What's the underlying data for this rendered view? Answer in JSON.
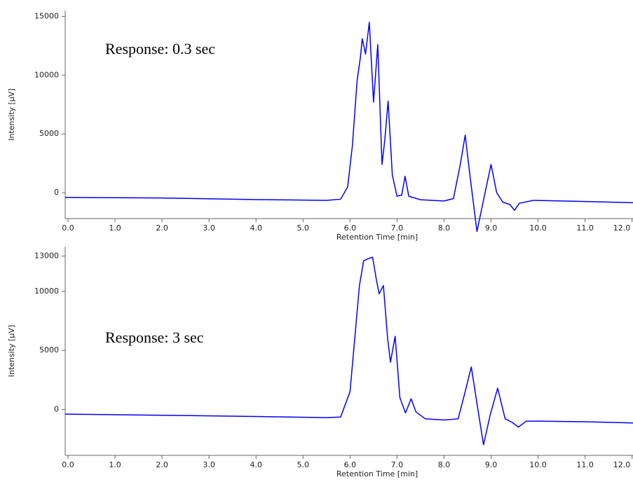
{
  "chart_data": [
    {
      "type": "line",
      "annotation": "Response: 0.3 sec",
      "x_label": "Retention Time [min]",
      "y_label": "Intensity [µV]",
      "xlim": [
        -0.06,
        12.02
      ],
      "ylim": [
        -2200,
        15500
      ],
      "xticks": [
        {
          "value": 0,
          "label": "0.0"
        },
        {
          "value": 1,
          "label": "1.0"
        },
        {
          "value": 2,
          "label": "2.0"
        },
        {
          "value": 3,
          "label": "3.0"
        },
        {
          "value": 4,
          "label": "4.0"
        },
        {
          "value": 5,
          "label": "5.0"
        },
        {
          "value": 6,
          "label": "6.0"
        },
        {
          "value": 7,
          "label": "7.0"
        },
        {
          "value": 8,
          "label": "8.0"
        },
        {
          "value": 9,
          "label": "9.0"
        },
        {
          "value": 10,
          "label": "10.0"
        },
        {
          "value": 11,
          "label": "11.0"
        },
        {
          "value": 12,
          "label": "12.0"
        }
      ],
      "yticks": [
        0,
        5000,
        10000,
        15000
      ],
      "series": [
        {
          "color": "#0000ff",
          "x": [
            -0.06,
            2,
            4,
            5.5,
            5.8,
            5.95,
            6.05,
            6.15,
            6.22,
            6.26,
            6.33,
            6.41,
            6.5,
            6.59,
            6.68,
            6.74,
            6.81,
            6.9,
            7.0,
            7.1,
            7.17,
            7.25,
            7.5,
            8.0,
            8.2,
            8.35,
            8.45,
            8.55,
            8.7,
            8.82,
            9.0,
            9.12,
            9.25,
            9.4,
            9.5,
            9.6,
            9.9,
            11,
            12.02
          ],
          "values": [
            -400,
            -450,
            -580,
            -650,
            -550,
            500,
            4000,
            9500,
            11500,
            13100,
            11800,
            14500,
            7700,
            12600,
            2400,
            4500,
            7800,
            1500,
            -300,
            -200,
            1400,
            -300,
            -600,
            -700,
            -500,
            2500,
            4900,
            1500,
            -3300,
            -1000,
            2400,
            0,
            -800,
            -1000,
            -1500,
            -900,
            -650,
            -750,
            -850
          ]
        }
      ]
    },
    {
      "type": "line",
      "annotation": "Response: 3 sec",
      "x_label": "Retention Time [min]",
      "y_label": "Intensity [µV]",
      "xlim": [
        -0.06,
        12.02
      ],
      "ylim": [
        -3900,
        13800
      ],
      "xticks": [
        {
          "value": 0,
          "label": "0.0"
        },
        {
          "value": 1,
          "label": "1.0"
        },
        {
          "value": 2,
          "label": "2.0"
        },
        {
          "value": 3,
          "label": "3.0"
        },
        {
          "value": 4,
          "label": "4.0"
        },
        {
          "value": 5,
          "label": "5.0"
        },
        {
          "value": 6,
          "label": "6.0"
        },
        {
          "value": 7,
          "label": "7.0"
        },
        {
          "value": 8,
          "label": "8.0"
        },
        {
          "value": 9,
          "label": "9.0"
        },
        {
          "value": 10,
          "label": "10.0"
        },
        {
          "value": 11,
          "label": "11.0"
        },
        {
          "value": 12,
          "label": "12.0"
        }
      ],
      "yticks": [
        0,
        5000,
        10000,
        13000
      ],
      "series": [
        {
          "color": "#0000ff",
          "x": [
            -0.06,
            2,
            4,
            5.5,
            5.8,
            6.0,
            6.1,
            6.2,
            6.29,
            6.4,
            6.48,
            6.56,
            6.62,
            6.71,
            6.8,
            6.86,
            6.96,
            7.06,
            7.18,
            7.3,
            7.4,
            7.6,
            8.0,
            8.3,
            8.45,
            8.58,
            8.7,
            8.84,
            8.98,
            9.14,
            9.3,
            9.45,
            9.58,
            9.75,
            10,
            11,
            12.02
          ],
          "values": [
            -400,
            -500,
            -600,
            -700,
            -650,
            1500,
            6000,
            10500,
            12600,
            12800,
            12900,
            11000,
            9800,
            10500,
            6000,
            4000,
            6200,
            1000,
            -300,
            900,
            -200,
            -800,
            -900,
            -800,
            1500,
            3600,
            500,
            -3000,
            -500,
            1800,
            -800,
            -1100,
            -1500,
            -1000,
            -1000,
            -1050,
            -1150
          ]
        }
      ]
    }
  ]
}
